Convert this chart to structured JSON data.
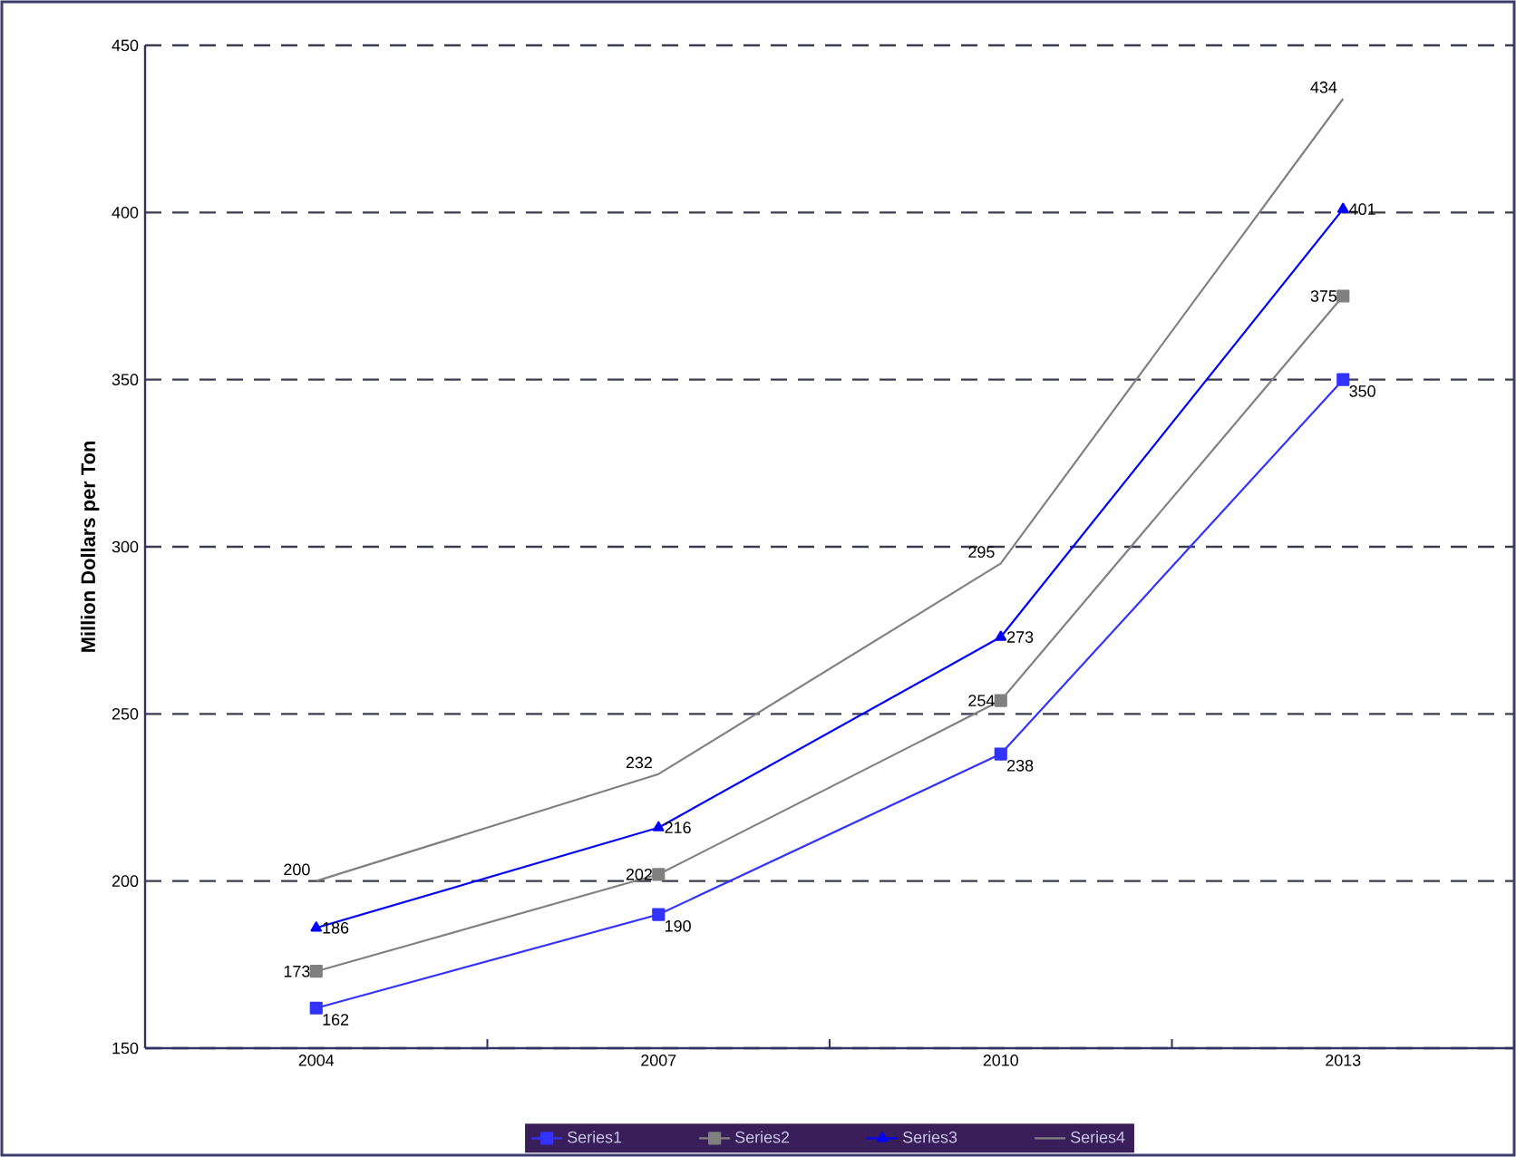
{
  "chart_data": {
    "type": "line",
    "ylabel": "Million Dollars per Ton",
    "categories": [
      "2004",
      "2007",
      "2010",
      "2013"
    ],
    "series": [
      {
        "name": "Series1",
        "color": "#3333ff",
        "marker": "square",
        "values": [
          162,
          190,
          238,
          350
        ]
      },
      {
        "name": "Series2",
        "color": "#808080",
        "marker": "square",
        "values": [
          173,
          202,
          254,
          375
        ]
      },
      {
        "name": "Series3",
        "color": "#0000ff",
        "marker": "triangle",
        "values": [
          186,
          216,
          273,
          401
        ]
      },
      {
        "name": "Series4",
        "color": "#808080",
        "marker": "none",
        "values": [
          200,
          232,
          295,
          434
        ]
      }
    ],
    "ylim": [
      150,
      450
    ],
    "yticks": [
      150,
      200,
      250,
      300,
      350,
      400,
      450
    ],
    "grid": "y",
    "legend": "bottom",
    "data_labels": true,
    "line_style": "solid"
  }
}
